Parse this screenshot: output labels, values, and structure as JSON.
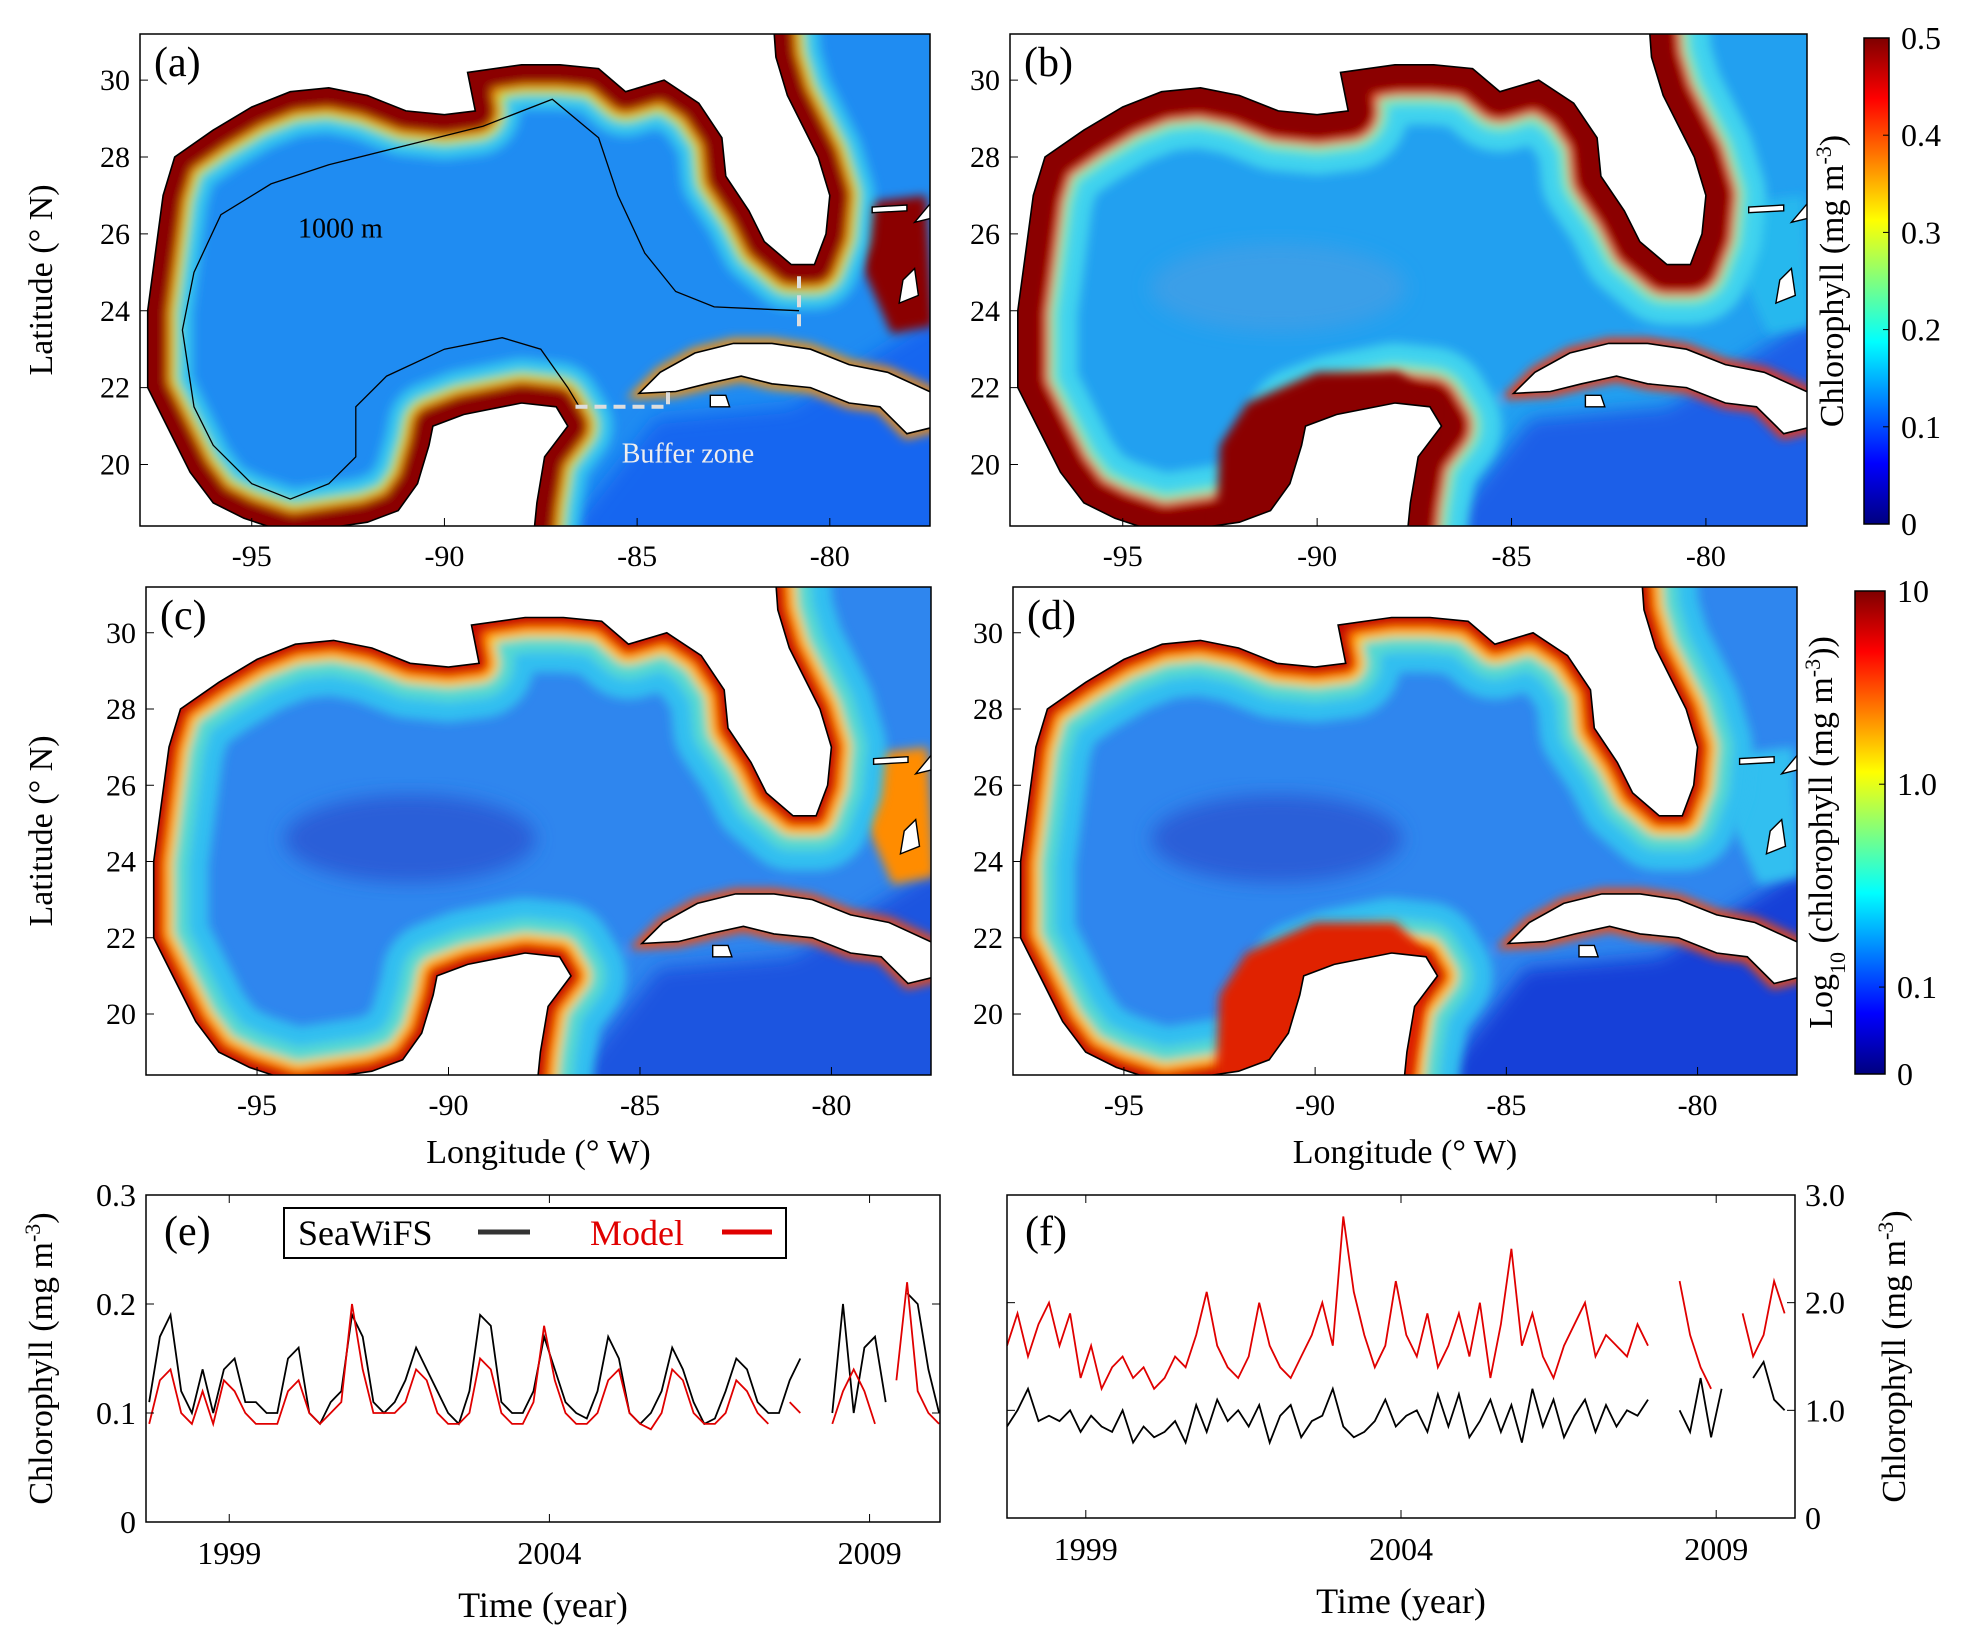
{
  "maps": [
    {
      "id": "a",
      "label": "(a)",
      "yticks": [
        "30",
        "28",
        "26",
        "24",
        "22",
        "20"
      ],
      "xticks": [
        "-95",
        "-90",
        "-85",
        "-80"
      ],
      "ylabel": "Latitude (° N)",
      "xlabel": "",
      "contour_label": "1000 m",
      "buffer_label": "Buffer zone"
    },
    {
      "id": "b",
      "label": "(b)",
      "yticks": [
        "30",
        "28",
        "26",
        "24",
        "22",
        "20"
      ],
      "xticks": [
        "-95",
        "-90",
        "-85",
        "-80"
      ],
      "ylabel": "",
      "xlabel": ""
    },
    {
      "id": "c",
      "label": "(c)",
      "yticks": [
        "30",
        "28",
        "26",
        "24",
        "22",
        "20"
      ],
      "xticks": [
        "-95",
        "-90",
        "-85",
        "-80"
      ],
      "ylabel": "Latitude (° N)",
      "xlabel": "Longitude (° W)"
    },
    {
      "id": "d",
      "label": "(d)",
      "yticks": [
        "30",
        "28",
        "26",
        "24",
        "22",
        "20"
      ],
      "xticks": [
        "-95",
        "-90",
        "-85",
        "-80"
      ],
      "ylabel": "",
      "xlabel": "Longitude (° W)"
    }
  ],
  "colorbars": [
    {
      "label": "Chlorophyll (mg m-3)",
      "ticks": [
        "0.5",
        "0.4",
        "0.3",
        "0.2",
        "0.1",
        "0"
      ]
    },
    {
      "label": "Log10 (chlorophyll (mg m-3))",
      "ticks": [
        "10",
        "1.0",
        "0.1",
        "0"
      ]
    }
  ],
  "colormap": [
    "#00007f",
    "#0000ff",
    "#007fff",
    "#00ffff",
    "#7fff7f",
    "#ffff00",
    "#ff7f00",
    "#ff0000",
    "#7f0000"
  ],
  "chart_data": [
    {
      "type": "line",
      "panel": "(e)",
      "xlabel": "Time (year)",
      "ylabel": "Chlorophyll (mg m-3)",
      "xlim": [
        1997.7,
        2010.1
      ],
      "ylim": [
        0,
        0.3
      ],
      "yticks": [
        "0",
        "0.1",
        "0.2",
        "0.3"
      ],
      "yaxis": "left",
      "xticks": [
        1999,
        2004,
        2009
      ],
      "x_start": 1997.75,
      "x_step": 0.1667,
      "legend": {
        "placement": "top",
        "entries": [
          "SeaWiFS",
          "Model"
        ]
      },
      "series": [
        {
          "name": "SeaWiFS",
          "color": "#000000",
          "values": [
            0.11,
            0.17,
            0.19,
            0.12,
            0.1,
            0.14,
            0.1,
            0.14,
            0.15,
            0.11,
            0.11,
            0.1,
            0.1,
            0.15,
            0.16,
            0.1,
            0.09,
            0.11,
            0.12,
            0.19,
            0.17,
            0.11,
            0.1,
            0.11,
            0.13,
            0.16,
            0.14,
            0.12,
            0.1,
            0.09,
            0.12,
            0.19,
            0.18,
            0.11,
            0.1,
            0.1,
            0.12,
            0.17,
            0.14,
            0.11,
            0.1,
            0.095,
            0.12,
            0.17,
            0.15,
            0.1,
            0.09,
            0.1,
            0.12,
            0.16,
            0.14,
            0.11,
            0.09,
            0.095,
            0.12,
            0.15,
            0.14,
            0.11,
            0.1,
            0.1,
            0.13,
            0.15,
            null,
            null,
            0.1,
            0.2,
            0.1,
            0.16,
            0.17,
            0.11,
            null,
            0.21,
            0.2,
            0.14,
            0.1
          ]
        },
        {
          "name": "Model",
          "color": "#e00000",
          "values": [
            0.09,
            0.13,
            0.14,
            0.1,
            0.09,
            0.12,
            0.09,
            0.13,
            0.12,
            0.1,
            0.09,
            0.09,
            0.09,
            0.12,
            0.13,
            0.1,
            0.09,
            0.1,
            0.11,
            0.2,
            0.14,
            0.1,
            0.1,
            0.1,
            0.11,
            0.14,
            0.13,
            0.1,
            0.09,
            0.09,
            0.1,
            0.15,
            0.14,
            0.1,
            0.09,
            0.09,
            0.11,
            0.18,
            0.13,
            0.1,
            0.09,
            0.09,
            0.1,
            0.13,
            0.14,
            0.1,
            0.09,
            0.085,
            0.1,
            0.14,
            0.13,
            0.1,
            0.09,
            0.09,
            0.1,
            0.13,
            0.12,
            0.1,
            0.09,
            null,
            0.11,
            0.1,
            null,
            null,
            0.09,
            0.12,
            0.14,
            0.12,
            0.09,
            null,
            0.13,
            0.22,
            0.12,
            0.1,
            0.09
          ]
        }
      ]
    },
    {
      "type": "line",
      "panel": "(f)",
      "xlabel": "Time (year)",
      "ylabel": "Chlorophyll (mg m-3)",
      "xlim": [
        1997.75,
        2010.25
      ],
      "ylim": [
        0,
        3.0
      ],
      "yticks": [
        "0",
        "1.0",
        "2.0",
        "3.0"
      ],
      "yaxis": "right",
      "xticks": [
        1999,
        2004,
        2009
      ],
      "x_start": 1997.75,
      "x_step": 0.1667,
      "series": [
        {
          "name": "SeaWiFS",
          "color": "#000000",
          "values": [
            0.85,
            1.0,
            1.2,
            0.9,
            0.95,
            0.9,
            1.0,
            0.8,
            0.95,
            0.85,
            0.8,
            1.0,
            0.7,
            0.85,
            0.75,
            0.8,
            0.9,
            0.7,
            1.05,
            0.8,
            1.1,
            0.9,
            1.0,
            0.85,
            1.05,
            0.7,
            0.95,
            1.05,
            0.75,
            0.9,
            0.95,
            1.2,
            0.85,
            0.75,
            0.8,
            0.9,
            1.1,
            0.85,
            0.95,
            1.0,
            0.8,
            1.15,
            0.85,
            1.15,
            0.75,
            0.9,
            1.1,
            0.8,
            1.05,
            0.7,
            1.2,
            0.85,
            1.1,
            0.75,
            0.95,
            1.1,
            0.8,
            1.05,
            0.85,
            1.0,
            0.95,
            1.1,
            null,
            null,
            1.0,
            0.8,
            1.3,
            0.75,
            1.2,
            null,
            null,
            1.3,
            1.45,
            1.1,
            1.0
          ]
        },
        {
          "name": "Model",
          "color": "#e00000",
          "values": [
            1.6,
            1.9,
            1.5,
            1.8,
            2.0,
            1.6,
            1.9,
            1.3,
            1.6,
            1.2,
            1.4,
            1.5,
            1.3,
            1.4,
            1.2,
            1.3,
            1.5,
            1.4,
            1.7,
            2.1,
            1.6,
            1.4,
            1.3,
            1.5,
            2.0,
            1.6,
            1.4,
            1.3,
            1.5,
            1.7,
            2.0,
            1.6,
            2.8,
            2.1,
            1.7,
            1.4,
            1.6,
            2.2,
            1.7,
            1.5,
            1.9,
            1.4,
            1.6,
            1.9,
            1.5,
            2.0,
            1.3,
            1.8,
            2.5,
            1.6,
            1.9,
            1.5,
            1.3,
            1.6,
            1.8,
            2.0,
            1.5,
            1.7,
            1.6,
            1.5,
            1.8,
            1.6,
            null,
            null,
            2.2,
            1.7,
            1.4,
            1.2,
            null,
            null,
            1.9,
            1.5,
            1.7,
            2.2,
            1.9
          ]
        }
      ]
    }
  ]
}
